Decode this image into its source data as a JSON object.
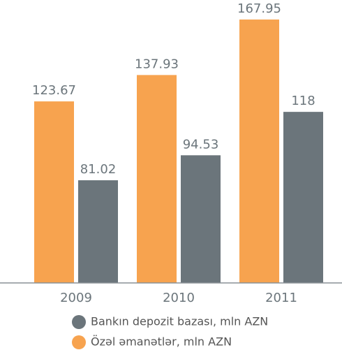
{
  "chart_data": {
    "type": "bar",
    "categories": [
      "2009",
      "2010",
      "2011"
    ],
    "series": [
      {
        "name": "Özəl əmanətlər, mln AZN",
        "color": "#f7a34f",
        "values": [
          123.67,
          137.93,
          167.95
        ]
      },
      {
        "name": "Bankın depozit bazası, mln AZN",
        "color": "#6b757b",
        "values": [
          81.02,
          94.53,
          118
        ]
      }
    ],
    "ylim": [
      25.5,
      178.5
    ]
  }
}
